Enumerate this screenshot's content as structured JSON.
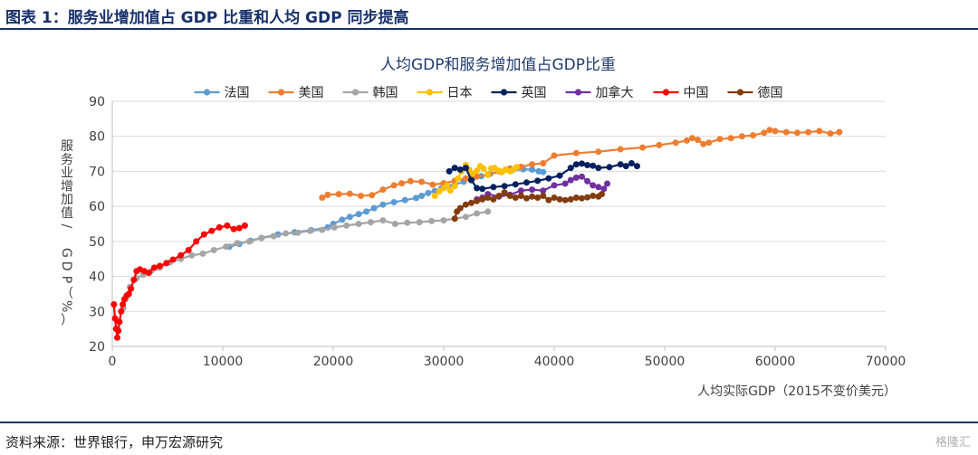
{
  "header": {
    "title": "图表 1：服务业增加值占 GDP 比重和人均 GDP 同步提高"
  },
  "footer": {
    "source": "资料来源：世界银行，申万宏源研究",
    "watermark": "格隆汇"
  },
  "chart_data": {
    "type": "scatter",
    "title": "人均GDP和服务增加值占GDP比重",
    "xlabel": "人均实际GDP（2015不变价美元）",
    "ylabel": "服务业增加值/ GDP（%）",
    "xlim": [
      0,
      70000
    ],
    "ylim": [
      20,
      90
    ],
    "x_ticks": [
      0,
      10000,
      20000,
      30000,
      40000,
      50000,
      60000,
      70000
    ],
    "y_ticks": [
      20,
      30,
      40,
      50,
      60,
      70,
      80,
      90
    ],
    "grid": "horizontal",
    "legend": "top",
    "series": [
      {
        "name": "法国",
        "color": "#5b9bd5",
        "x": [
          10600,
          11500,
          12500,
          13500,
          15000,
          16500,
          18000,
          19500,
          20000,
          20800,
          21500,
          22300,
          23000,
          23700,
          24500,
          25500,
          26500,
          27500,
          28000,
          28600,
          29200,
          29800,
          30400,
          31000,
          31800,
          32600,
          33400,
          34200,
          35200,
          36200,
          37200,
          38000,
          38600,
          39000
        ],
        "y": [
          48.5,
          49.3,
          50.2,
          51.0,
          52.0,
          52.6,
          53.2,
          54.0,
          55.0,
          56.2,
          57.0,
          57.8,
          58.5,
          59.5,
          60.5,
          61.2,
          61.8,
          62.4,
          63.0,
          63.8,
          64.4,
          65.2,
          65.8,
          66.3,
          67.0,
          68.0,
          68.6,
          69.3,
          69.8,
          70.3,
          70.6,
          70.5,
          70.0,
          69.8
        ]
      },
      {
        "name": "美国",
        "color": "#ed7d31",
        "x": [
          19000,
          19500,
          20500,
          21500,
          22500,
          23500,
          24500,
          25500,
          26200,
          27000,
          28000,
          29000,
          30000,
          31000,
          32000,
          33000,
          34000,
          35000,
          36000,
          37000,
          38000,
          39000,
          40000,
          42000,
          44000,
          46000,
          48000,
          49500,
          51000,
          52000,
          52500,
          53000,
          53500,
          54000,
          55000,
          56000,
          57000,
          58000,
          59000,
          59500,
          60000,
          61000,
          62000,
          63000,
          64000,
          65000,
          65800
        ],
        "y": [
          62.5,
          63.3,
          63.5,
          63.6,
          63.0,
          63.2,
          64.8,
          66.0,
          66.6,
          67.2,
          67.0,
          66.2,
          66.6,
          67.3,
          68.0,
          68.5,
          69.0,
          70.0,
          70.8,
          71.3,
          72.0,
          72.3,
          74.5,
          75.2,
          75.6,
          76.3,
          76.8,
          77.5,
          78.2,
          78.8,
          79.5,
          79.0,
          77.8,
          78.2,
          79.2,
          79.5,
          80.0,
          80.3,
          81.0,
          81.8,
          81.5,
          81.2,
          81.0,
          81.2,
          81.5,
          80.8,
          81.2
        ]
      },
      {
        "name": "韩国",
        "color": "#a5a5a5",
        "x": [
          1000,
          1200,
          1600,
          2200,
          2800,
          3500,
          4300,
          5200,
          6200,
          7200,
          8200,
          9200,
          10300,
          11300,
          12400,
          13500,
          14600,
          15700,
          16800,
          17900,
          19000,
          20100,
          21200,
          22300,
          23400,
          24500,
          25600,
          26700,
          27800,
          28900,
          30000,
          31000,
          32000,
          33000,
          34000
        ],
        "y": [
          31.0,
          33.5,
          37.0,
          39.5,
          40.5,
          41.5,
          42.5,
          44.0,
          45.0,
          46.0,
          46.5,
          47.5,
          48.5,
          49.5,
          50.0,
          51.0,
          51.5,
          52.3,
          52.5,
          53.0,
          53.3,
          54.0,
          54.5,
          55.0,
          55.5,
          56.0,
          55.0,
          55.3,
          55.5,
          55.8,
          56.0,
          56.5,
          57.0,
          58.0,
          58.5
        ]
      },
      {
        "name": "日本",
        "color": "#ffc000",
        "x": [
          29200,
          29600,
          30000,
          30300,
          30600,
          31000,
          31300,
          31600,
          32000,
          32300,
          32600,
          33000,
          33300,
          33600,
          34000,
          34300,
          34600,
          35000,
          35300,
          35600,
          36000,
          36300,
          36600
        ],
        "y": [
          63.0,
          64.3,
          65.2,
          66.0,
          64.5,
          65.8,
          68.0,
          70.0,
          71.8,
          70.5,
          69.3,
          70.2,
          71.5,
          70.8,
          69.0,
          70.8,
          71.0,
          70.2,
          69.8,
          70.5,
          70.0,
          70.5,
          71.2
        ]
      },
      {
        "name": "英国",
        "color": "#002060",
        "x": [
          30500,
          31000,
          31500,
          32000,
          32500,
          33000,
          33500,
          34500,
          35500,
          36500,
          37500,
          38500,
          39500,
          40500,
          41500,
          42000,
          42500,
          43000,
          43500,
          44000,
          45000,
          46000,
          46500,
          47000,
          47500
        ],
        "y": [
          70.0,
          71.0,
          70.5,
          71.0,
          67.5,
          65.2,
          65.0,
          65.5,
          65.8,
          66.3,
          66.8,
          67.3,
          68.0,
          68.8,
          71.0,
          72.0,
          72.2,
          71.8,
          71.6,
          71.0,
          71.2,
          72.0,
          71.5,
          72.3,
          71.5
        ]
      },
      {
        "name": "加拿大",
        "color": "#7030a0",
        "x": [
          33000,
          33500,
          34000,
          35000,
          36000,
          37000,
          38000,
          39000,
          40000,
          41000,
          41500,
          42000,
          42500,
          43000,
          43500,
          44000,
          44500,
          44800
        ],
        "y": [
          62.0,
          62.5,
          63.5,
          62.8,
          63.3,
          64.5,
          64.8,
          64.5,
          66.0,
          66.5,
          67.5,
          68.2,
          68.5,
          67.2,
          66.0,
          65.5,
          65.0,
          66.5
        ]
      },
      {
        "name": "中国",
        "color": "#ff0000",
        "x": [
          150,
          250,
          350,
          450,
          550,
          650,
          800,
          950,
          1100,
          1300,
          1500,
          1700,
          1950,
          2200,
          2500,
          2900,
          3300,
          3800,
          4300,
          4900,
          5500,
          6200,
          6900,
          7600,
          8300,
          9000,
          9700,
          10400,
          11000,
          11500,
          12000
        ],
        "y": [
          32.0,
          28.0,
          25.0,
          22.5,
          24.5,
          27.0,
          30.0,
          32.0,
          33.5,
          34.5,
          35.0,
          36.5,
          39.0,
          41.5,
          42.0,
          41.5,
          41.0,
          42.5,
          43.0,
          43.8,
          44.8,
          46.0,
          47.5,
          50.0,
          52.0,
          53.0,
          54.0,
          54.5,
          53.5,
          53.8,
          54.5
        ]
      },
      {
        "name": "德国",
        "color": "#843c0c",
        "x": [
          31000,
          31200,
          31500,
          32000,
          32500,
          33000,
          33500,
          34000,
          34500,
          35000,
          35500,
          36000,
          36500,
          37000,
          37500,
          38000,
          38500,
          39000,
          39500,
          40000,
          40500,
          41000,
          41500,
          42000,
          42500,
          43000,
          43500,
          44000,
          44300
        ],
        "y": [
          56.5,
          58.5,
          59.5,
          60.5,
          61.0,
          61.5,
          62.0,
          62.5,
          62.0,
          63.0,
          64.0,
          63.0,
          62.5,
          63.0,
          62.3,
          62.8,
          62.5,
          63.0,
          61.8,
          62.5,
          62.0,
          61.8,
          62.0,
          62.5,
          62.3,
          62.6,
          63.0,
          62.8,
          63.5
        ]
      }
    ]
  }
}
